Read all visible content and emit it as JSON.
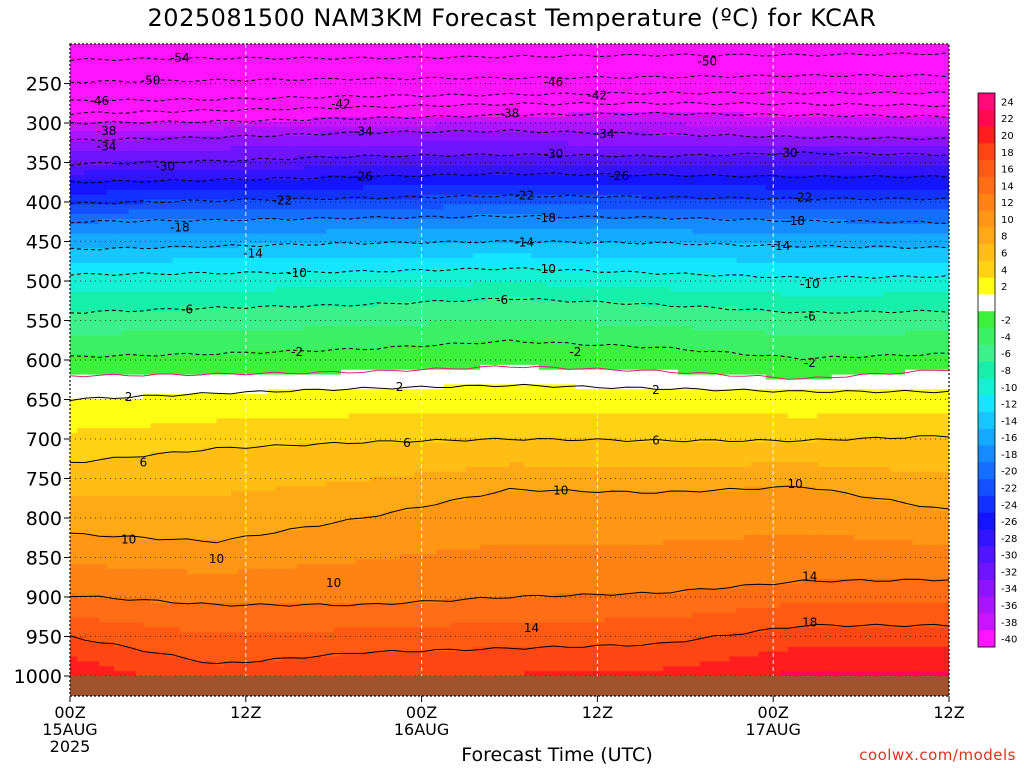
{
  "title": "2025081500 NAM3KM Forecast Temperature (ºC) for KCAR",
  "credit": "coolwx.com/models",
  "chart_data": {
    "type": "heatmap",
    "title": "2025081500 NAM3KM Forecast Temperature (ºC) for KCAR",
    "xlabel": "Forecast Time (UTC)",
    "ylabel": "",
    "x_ticks": [
      {
        "hour": 0,
        "label": "00Z",
        "sub": [
          "15AUG",
          "2025"
        ]
      },
      {
        "hour": 12,
        "label": "12Z",
        "sub": []
      },
      {
        "hour": 24,
        "label": "00Z",
        "sub": [
          "16AUG"
        ]
      },
      {
        "hour": 36,
        "label": "12Z",
        "sub": []
      },
      {
        "hour": 48,
        "label": "00Z",
        "sub": [
          "17AUG"
        ]
      },
      {
        "hour": 60,
        "label": "12Z",
        "sub": []
      }
    ],
    "xlim": [
      0,
      60
    ],
    "y_ticks": [
      250,
      300,
      350,
      400,
      450,
      500,
      550,
      600,
      650,
      700,
      750,
      800,
      850,
      900,
      950,
      1000
    ],
    "ylim_hpa": [
      200,
      1025
    ],
    "ground_below_hpa": 1000,
    "colorbar": [
      {
        "label": "24",
        "color": "#ff0a78"
      },
      {
        "label": "22",
        "color": "#ff0a50"
      },
      {
        "label": "20",
        "color": "#ff1e1e"
      },
      {
        "label": "18",
        "color": "#ff4614"
      },
      {
        "label": "16",
        "color": "#ff5a14"
      },
      {
        "label": "14",
        "color": "#ff6e14"
      },
      {
        "label": "12",
        "color": "#ff8214"
      },
      {
        "label": "10",
        "color": "#ff9614"
      },
      {
        "label": "8",
        "color": "#ffaa14"
      },
      {
        "label": "6",
        "color": "#ffbe14"
      },
      {
        "label": "4",
        "color": "#ffd214"
      },
      {
        "label": "2",
        "color": "#ffff14"
      },
      {
        "label": "",
        "color": "#ffffff"
      },
      {
        "label": "-2",
        "color": "#3cf03c"
      },
      {
        "label": "-4",
        "color": "#3cf064"
      },
      {
        "label": "-6",
        "color": "#3cf08c"
      },
      {
        "label": "-8",
        "color": "#14f0aa"
      },
      {
        "label": "-10",
        "color": "#14f0d2"
      },
      {
        "label": "-12",
        "color": "#14e6ff"
      },
      {
        "label": "-14",
        "color": "#14c8ff"
      },
      {
        "label": "-16",
        "color": "#14aaff"
      },
      {
        "label": "-18",
        "color": "#148cff"
      },
      {
        "label": "-20",
        "color": "#146eff"
      },
      {
        "label": "-22",
        "color": "#1450ff"
      },
      {
        "label": "-24",
        "color": "#1432ff"
      },
      {
        "label": "-26",
        "color": "#1414ff"
      },
      {
        "label": "-28",
        "color": "#3214ff"
      },
      {
        "label": "-30",
        "color": "#5014ff"
      },
      {
        "label": "-32",
        "color": "#6e14ff"
      },
      {
        "label": "-34",
        "color": "#8c14ff"
      },
      {
        "label": "-36",
        "color": "#aa14ff"
      },
      {
        "label": "-38",
        "color": "#c814ff"
      },
      {
        "label": "-40",
        "color": "#ff14ff"
      }
    ],
    "isotherms": [
      {
        "value": -54,
        "dashed": true,
        "p": [
          220,
          218,
          218,
          216,
          214,
          214,
          212
        ]
      },
      {
        "value": -50,
        "dashed": true,
        "p": [
          248,
          246,
          244,
          243,
          242,
          240,
          240
        ]
      },
      {
        "value": -46,
        "dashed": true,
        "p": [
          272,
          270,
          266,
          264,
          262,
          262,
          262
        ]
      },
      {
        "value": -42,
        "dashed": true,
        "p": [
          288,
          284,
          280,
          276,
          275,
          276,
          278
        ]
      },
      {
        "value": -38,
        "dashed": true,
        "p": [
          300,
          298,
          294,
          290,
          288,
          290,
          292
        ]
      },
      {
        "value": -34,
        "dashed": true,
        "p": [
          322,
          318,
          312,
          310,
          314,
          318,
          320
        ]
      },
      {
        "value": -30,
        "dashed": true,
        "p": [
          352,
          348,
          342,
          340,
          342,
          338,
          340
        ]
      },
      {
        "value": -26,
        "dashed": true,
        "p": [
          375,
          372,
          368,
          364,
          366,
          368,
          368
        ]
      },
      {
        "value": -22,
        "dashed": true,
        "p": [
          402,
          398,
          395,
          392,
          394,
          396,
          396
        ]
      },
      {
        "value": -18,
        "dashed": true,
        "p": [
          425,
          423,
          420,
          418,
          420,
          424,
          426
        ]
      },
      {
        "value": -14,
        "dashed": true,
        "p": [
          460,
          456,
          452,
          450,
          452,
          456,
          458
        ]
      },
      {
        "value": -10,
        "dashed": true,
        "p": [
          492,
          490,
          488,
          484,
          490,
          496,
          494
        ]
      },
      {
        "value": -6,
        "dashed": true,
        "p": [
          540,
          534,
          530,
          522,
          530,
          540,
          538
        ]
      },
      {
        "value": -2,
        "dashed": true,
        "p": [
          596,
          592,
          586,
          576,
          584,
          598,
          592
        ]
      },
      {
        "value": 0,
        "dashed": false,
        "p": [
          620,
          618,
          615,
          608,
          614,
          624,
          612
        ]
      },
      {
        "value": 2,
        "dashed": false,
        "p": [
          650,
          642,
          636,
          632,
          636,
          640,
          640
        ]
      },
      {
        "value": 6,
        "dashed": false,
        "p": [
          730,
          712,
          704,
          700,
          702,
          702,
          696
        ]
      },
      {
        "value": 10,
        "dashed": false,
        "p": [
          820,
          830,
          800,
          764,
          768,
          760,
          790
        ]
      },
      {
        "value": 14,
        "dashed": false,
        "p": [
          898,
          910,
          910,
          900,
          895,
          880,
          878
        ]
      },
      {
        "value": 18,
        "dashed": false,
        "p": [
          950,
          985,
          970,
          965,
          960,
          936,
          936
        ]
      }
    ],
    "isotherm_labels": [
      {
        "text": "-54",
        "hour": 7.5,
        "p": 218
      },
      {
        "text": "-50",
        "hour": 5.5,
        "p": 246
      },
      {
        "text": "-50",
        "hour": 43.5,
        "p": 222
      },
      {
        "text": "-46",
        "hour": 2,
        "p": 272
      },
      {
        "text": "-46",
        "hour": 33,
        "p": 248
      },
      {
        "text": "-42",
        "hour": 18.5,
        "p": 276
      },
      {
        "text": "-42",
        "hour": 36,
        "p": 265
      },
      {
        "text": "-38",
        "hour": 2.5,
        "p": 310
      },
      {
        "text": "-38",
        "hour": 30,
        "p": 288
      },
      {
        "text": "-34",
        "hour": 2.5,
        "p": 330
      },
      {
        "text": "-34",
        "hour": 20,
        "p": 311
      },
      {
        "text": "-34",
        "hour": 36.5,
        "p": 314
      },
      {
        "text": "-30",
        "hour": 6.5,
        "p": 355
      },
      {
        "text": "-30",
        "hour": 33,
        "p": 339
      },
      {
        "text": "-30",
        "hour": 49,
        "p": 338
      },
      {
        "text": "-26",
        "hour": 20,
        "p": 368
      },
      {
        "text": "-26",
        "hour": 37.5,
        "p": 367
      },
      {
        "text": "-22",
        "hour": 14.5,
        "p": 398
      },
      {
        "text": "-22",
        "hour": 31,
        "p": 392
      },
      {
        "text": "-22",
        "hour": 50,
        "p": 394
      },
      {
        "text": "-18",
        "hour": 7.5,
        "p": 432
      },
      {
        "text": "-18",
        "hour": 32.5,
        "p": 420
      },
      {
        "text": "-18",
        "hour": 49.5,
        "p": 424
      },
      {
        "text": "-14",
        "hour": 12.5,
        "p": 465
      },
      {
        "text": "-14",
        "hour": 31,
        "p": 451
      },
      {
        "text": "-14",
        "hour": 48.5,
        "p": 456
      },
      {
        "text": "-10",
        "hour": 15.5,
        "p": 490
      },
      {
        "text": "-10",
        "hour": 32.5,
        "p": 485
      },
      {
        "text": "-10",
        "hour": 50.5,
        "p": 504
      },
      {
        "text": "-6",
        "hour": 8,
        "p": 536
      },
      {
        "text": "-6",
        "hour": 29.5,
        "p": 524
      },
      {
        "text": "-6",
        "hour": 50.5,
        "p": 545
      },
      {
        "text": "-2",
        "hour": 15.5,
        "p": 590
      },
      {
        "text": "-2",
        "hour": 34.5,
        "p": 590
      },
      {
        "text": "-2",
        "hour": 50.5,
        "p": 604
      },
      {
        "text": "2",
        "hour": 4,
        "p": 647
      },
      {
        "text": "2",
        "hour": 22.5,
        "p": 634
      },
      {
        "text": "2",
        "hour": 40,
        "p": 638
      },
      {
        "text": "6",
        "hour": 5,
        "p": 730
      },
      {
        "text": "6",
        "hour": 23,
        "p": 705
      },
      {
        "text": "6",
        "hour": 40,
        "p": 702
      },
      {
        "text": "10",
        "hour": 4,
        "p": 827
      },
      {
        "text": "10",
        "hour": 10,
        "p": 852
      },
      {
        "text": "10",
        "hour": 18,
        "p": 882
      },
      {
        "text": "10",
        "hour": 33.5,
        "p": 765
      },
      {
        "text": "10",
        "hour": 49.5,
        "p": 757
      },
      {
        "text": "14",
        "hour": 31.5,
        "p": 939
      },
      {
        "text": "14",
        "hour": 50.5,
        "p": 874
      },
      {
        "text": "18",
        "hour": 50.5,
        "p": 932
      }
    ]
  }
}
